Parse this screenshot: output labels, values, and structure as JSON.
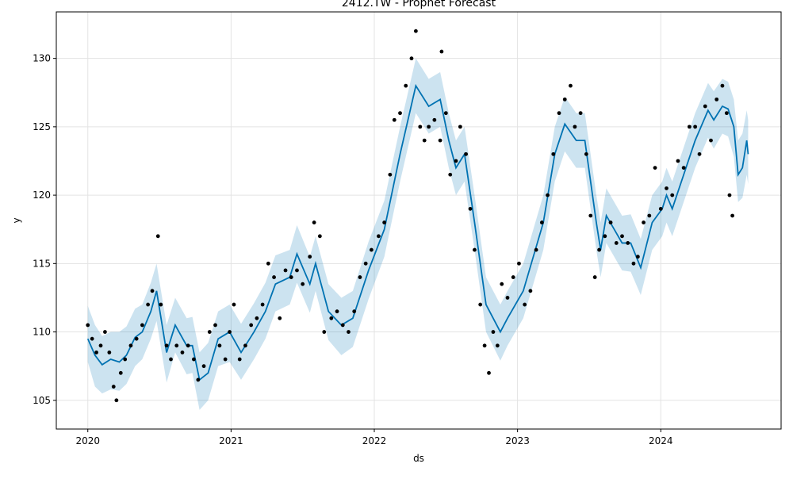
{
  "chart_data": {
    "type": "line",
    "title": "2412.TW - Prophet Forecast",
    "xlabel": "ds",
    "ylabel": "y",
    "xlim": [
      2019.78,
      2024.84
    ],
    "xticks": [
      2020,
      2021,
      2022,
      2023,
      2024
    ],
    "ylim": [
      102.9,
      133.4
    ],
    "yticks": [
      105,
      110,
      115,
      120,
      125,
      130
    ],
    "grid": true,
    "forecast": {
      "color": "#0072B2",
      "band_color": "#0072B2",
      "x": [
        2020.0,
        2020.05,
        2020.1,
        2020.16,
        2020.22,
        2020.27,
        2020.33,
        2020.38,
        2020.44,
        2020.48,
        2020.55,
        2020.61,
        2020.69,
        2020.73,
        2020.78,
        2020.84,
        2020.91,
        2020.99,
        2021.07,
        2021.16,
        2021.24,
        2021.31,
        2021.41,
        2021.46,
        2021.55,
        2021.59,
        2021.68,
        2021.77,
        2021.85,
        2021.96,
        2022.07,
        2022.18,
        2022.29,
        2022.38,
        2022.46,
        2022.52,
        2022.57,
        2022.63,
        2022.7,
        2022.78,
        2022.88,
        2022.93,
        2023.04,
        2023.18,
        2023.26,
        2023.33,
        2023.41,
        2023.47,
        2023.55,
        2023.58,
        2023.62,
        2023.73,
        2023.79,
        2023.86,
        2023.94,
        2024.01,
        2024.04,
        2024.08,
        2024.16,
        2024.24,
        2024.33,
        2024.37,
        2024.43,
        2024.47,
        2024.51,
        2024.54,
        2024.57,
        2024.6,
        2024.61
      ],
      "values": [
        109.5,
        108.3,
        107.6,
        108.0,
        107.8,
        108.3,
        109.6,
        110.0,
        111.5,
        113.0,
        108.5,
        110.5,
        109.0,
        109.0,
        106.5,
        107.0,
        109.5,
        110.0,
        108.5,
        110.0,
        111.5,
        113.5,
        114.0,
        115.7,
        113.5,
        115.0,
        111.5,
        110.5,
        111.0,
        114.5,
        117.5,
        123.0,
        128.0,
        126.5,
        127.0,
        124.0,
        122.0,
        123.0,
        118.0,
        112.0,
        110.0,
        111.0,
        113.0,
        118.0,
        123.0,
        125.2,
        124.0,
        124.0,
        118.0,
        116.0,
        118.5,
        116.5,
        116.5,
        114.7,
        118.0,
        119.0,
        120.0,
        119.0,
        121.5,
        124.0,
        126.2,
        125.5,
        126.5,
        126.3,
        125.0,
        121.5,
        122.0,
        124.0,
        123.0
      ],
      "lower": [
        107.8,
        106.0,
        105.5,
        105.8,
        105.7,
        106.2,
        107.5,
        108.0,
        109.5,
        110.8,
        106.3,
        108.5,
        106.9,
        107.0,
        104.3,
        105.0,
        107.5,
        107.8,
        106.5,
        108.0,
        109.5,
        111.5,
        112.0,
        113.6,
        111.4,
        113.0,
        109.4,
        108.3,
        108.9,
        112.4,
        115.5,
        121.0,
        126.0,
        124.5,
        125.0,
        122.0,
        120.0,
        121.0,
        116.0,
        110.0,
        107.9,
        109.0,
        111.0,
        116.0,
        121.0,
        123.2,
        122.0,
        122.0,
        116.0,
        114.0,
        116.5,
        114.5,
        114.4,
        112.7,
        116.0,
        117.0,
        118.0,
        117.0,
        119.5,
        122.0,
        124.2,
        123.4,
        124.5,
        124.3,
        122.8,
        119.5,
        119.8,
        121.5,
        120.8
      ],
      "upper": [
        111.9,
        110.5,
        109.7,
        110.0,
        110.0,
        110.4,
        111.7,
        112.0,
        113.6,
        115.0,
        110.5,
        112.5,
        111.0,
        111.1,
        108.5,
        109.2,
        111.5,
        112.0,
        110.6,
        112.1,
        113.6,
        115.6,
        116.0,
        117.8,
        115.5,
        117.0,
        113.5,
        112.5,
        113.0,
        116.6,
        119.6,
        125.0,
        130.0,
        128.5,
        129.0,
        126.0,
        124.0,
        125.0,
        120.0,
        114.0,
        112.0,
        113.0,
        115.0,
        120.0,
        125.0,
        127.2,
        126.0,
        126.0,
        120.0,
        118.0,
        120.5,
        118.5,
        118.6,
        116.8,
        120.0,
        121.0,
        122.0,
        121.0,
        123.5,
        126.0,
        128.2,
        127.6,
        128.5,
        128.3,
        127.0,
        124.0,
        124.5,
        126.2,
        125.5
      ]
    },
    "observed": {
      "color": "#000000",
      "x": [
        2020.0,
        2020.03,
        2020.06,
        2020.09,
        2020.12,
        2020.15,
        2020.18,
        2020.2,
        2020.23,
        2020.26,
        2020.3,
        2020.34,
        2020.38,
        2020.42,
        2020.45,
        2020.49,
        2020.51,
        2020.55,
        2020.58,
        2020.62,
        2020.66,
        2020.7,
        2020.74,
        2020.77,
        2020.81,
        2020.85,
        2020.89,
        2020.92,
        2020.96,
        2020.99,
        2021.02,
        2021.06,
        2021.1,
        2021.14,
        2021.18,
        2021.22,
        2021.26,
        2021.3,
        2021.34,
        2021.38,
        2021.42,
        2021.46,
        2021.5,
        2021.55,
        2021.58,
        2021.62,
        2021.65,
        2021.7,
        2021.74,
        2021.78,
        2021.82,
        2021.86,
        2021.9,
        2021.94,
        2021.98,
        2022.03,
        2022.07,
        2022.11,
        2022.14,
        2022.18,
        2022.22,
        2022.26,
        2022.29,
        2022.32,
        2022.35,
        2022.38,
        2022.42,
        2022.46,
        2022.47,
        2022.5,
        2022.53,
        2022.57,
        2022.6,
        2022.64,
        2022.67,
        2022.7,
        2022.74,
        2022.77,
        2022.8,
        2022.83,
        2022.86,
        2022.89,
        2022.93,
        2022.97,
        2023.01,
        2023.05,
        2023.09,
        2023.13,
        2023.17,
        2023.21,
        2023.25,
        2023.29,
        2023.33,
        2023.37,
        2023.4,
        2023.44,
        2023.48,
        2023.51,
        2023.54,
        2023.57,
        2023.61,
        2023.65,
        2023.69,
        2023.73,
        2023.77,
        2023.81,
        2023.84,
        2023.88,
        2023.92,
        2023.96,
        2024.0,
        2024.04,
        2024.08,
        2024.12,
        2024.16,
        2024.2,
        2024.24,
        2024.27,
        2024.31,
        2024.35,
        2024.39,
        2024.43,
        2024.46,
        2024.48,
        2024.5
      ],
      "values": [
        110.5,
        109.5,
        108.5,
        109,
        110,
        108.5,
        106,
        105,
        107,
        108,
        109,
        109.5,
        110.5,
        112,
        113,
        117,
        112,
        109,
        108,
        109,
        108.5,
        109,
        108,
        106.5,
        107.5,
        110,
        110.5,
        109,
        108,
        110,
        112,
        108,
        109,
        110.5,
        111,
        112,
        115,
        114,
        111,
        114.5,
        114,
        114.5,
        113.5,
        115.5,
        118,
        117,
        110,
        111,
        111.5,
        110.5,
        110,
        111.5,
        114,
        115,
        116,
        117,
        118,
        121.5,
        125.5,
        126,
        128,
        130,
        132,
        125,
        124,
        125,
        125.5,
        124,
        130.5,
        126,
        121.5,
        122.5,
        125,
        123,
        119,
        116,
        112,
        109,
        107,
        110,
        109,
        113.5,
        112.5,
        114,
        115,
        112,
        113,
        116,
        118,
        120,
        123,
        126,
        127,
        128,
        125,
        126,
        123,
        118.5,
        114,
        116,
        117,
        118,
        116.5,
        117,
        116.5,
        115,
        115.5,
        118,
        118.5,
        122,
        119,
        120.5,
        120,
        122.5,
        122,
        125,
        125,
        123,
        126.5,
        124,
        127,
        128,
        126,
        120,
        118.5
      ]
    }
  }
}
